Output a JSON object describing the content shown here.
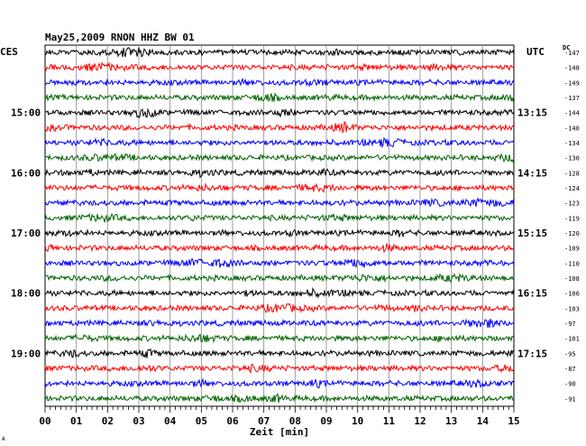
{
  "chart_data": {
    "type": "line",
    "title": "May25,2009   RNON HHZ BW 01",
    "left_timezone": "CES",
    "right_timezone": "UTC",
    "dc_label": "DC",
    "xlabel": "Zeit [min]",
    "x_ticks": [
      "00",
      "01",
      "02",
      "03",
      "04",
      "05",
      "06",
      "07",
      "08",
      "09",
      "10",
      "11",
      "12",
      "13",
      "14",
      "15"
    ],
    "xlim": [
      0,
      15
    ],
    "grid": true,
    "left_hour_labels": [
      {
        "row": 4,
        "text": "15:00"
      },
      {
        "row": 8,
        "text": "16:00"
      },
      {
        "row": 12,
        "text": "17:00"
      },
      {
        "row": 16,
        "text": "18:00"
      },
      {
        "row": 20,
        "text": "19:00"
      }
    ],
    "right_hour_labels": [
      {
        "row": 4,
        "text": "13:15"
      },
      {
        "row": 8,
        "text": "14:15"
      },
      {
        "row": 12,
        "text": "15:15"
      },
      {
        "row": 16,
        "text": "16:15"
      },
      {
        "row": 20,
        "text": "17:15"
      }
    ],
    "trace_colors": [
      "#000000",
      "#ff0000",
      "#0000ff",
      "#006400"
    ],
    "dc_offsets": [
      -147,
      -148,
      -149,
      -137,
      -144,
      -140,
      -134,
      -130,
      -128,
      -124,
      -123,
      -119,
      -120,
      -109,
      -110,
      -108,
      -106,
      -103,
      -97,
      -101,
      -95,
      -87,
      -90,
      -91
    ],
    "corner_mark": "A"
  }
}
